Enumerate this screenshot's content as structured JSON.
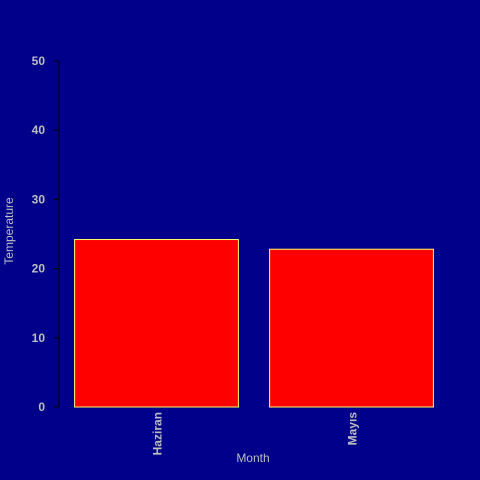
{
  "chart_data": {
    "type": "bar",
    "title": "",
    "xlabel": "Month",
    "ylabel": "Temperature",
    "categories": [
      "Haziran",
      "Mayıs"
    ],
    "values": [
      24.2,
      22.8
    ],
    "ylim": [
      0,
      50
    ],
    "yticks": [
      "0",
      "10",
      "20",
      "30",
      "40",
      "50"
    ],
    "grid": false,
    "legend": "none",
    "colors": {
      "background": "#00008B",
      "bar_fill": "#FF0000",
      "bar_stroke": "#FFFF66",
      "axis": "#000000",
      "text": "#BEBEBE"
    }
  }
}
